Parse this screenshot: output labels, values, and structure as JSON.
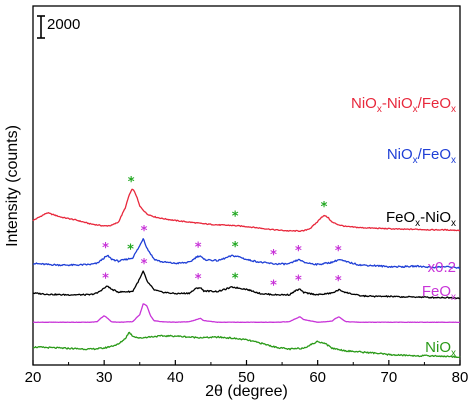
{
  "chart_data": {
    "type": "line",
    "title": "",
    "xlabel": "2θ (degree)",
    "ylabel": "Intensity (counts)",
    "xlim": [
      20,
      80
    ],
    "xticks": [
      20,
      30,
      40,
      50,
      60,
      70,
      80
    ],
    "yticks_shown": false,
    "grid": false,
    "legend": "labels beside each curve (right side)",
    "scale_bar": {
      "label": "2000",
      "value": 2000
    },
    "colors": {
      "NiOx-NiOx/FeOx": "#e8283c",
      "NiOx/FeOx": "#1f3fd6",
      "FeOx-NiOx": "#000000",
      "FeOx": "#c834d8",
      "NiOx": "#2a9a18",
      "star_green": "#22a822",
      "star_magenta": "#c834d8"
    },
    "series": [
      {
        "name": "NiOx-NiOx/FeOx",
        "label_parts": [
          "NiO",
          "x",
          "-NiO",
          "x",
          "/FeO",
          "x"
        ],
        "offset": 11500,
        "x": [
          20,
          22,
          24,
          26,
          28,
          30,
          31,
          32,
          33,
          33.5,
          34,
          34.5,
          35,
          36,
          37,
          38,
          40,
          42,
          44,
          46,
          48,
          50,
          52,
          54,
          56,
          58,
          59,
          60,
          60.5,
          61,
          61.5,
          62,
          63,
          64,
          66,
          68,
          70,
          72,
          74,
          76,
          78,
          80
        ],
        "y": [
          0,
          700,
          300,
          50,
          -300,
          -500,
          -450,
          -150,
          1200,
          2300,
          2900,
          2300,
          1300,
          600,
          350,
          200,
          0,
          -150,
          -300,
          -400,
          -450,
          -550,
          -700,
          -850,
          -950,
          -950,
          -700,
          -100,
          300,
          450,
          250,
          -150,
          -400,
          -550,
          -650,
          -700,
          -750,
          -800,
          -800,
          -850,
          -850,
          -900
        ],
        "peaks": [
          {
            "x": 33.8,
            "mark": "*",
            "color": "green"
          },
          {
            "x": 48.4,
            "mark": "*",
            "color": "green"
          },
          {
            "x": 60.9,
            "mark": "*",
            "color": "green"
          }
        ]
      },
      {
        "name": "NiOx/FeOx",
        "label_parts": [
          "NiO",
          "x",
          "/FeO",
          "x"
        ],
        "offset": 7600,
        "x": [
          20,
          22,
          24,
          26,
          28,
          29,
          30,
          30.5,
          31,
          32,
          33,
          34,
          35,
          35.5,
          36,
          37,
          38,
          40,
          42,
          43,
          43.5,
          44,
          46,
          48,
          49,
          50,
          52,
          54,
          56,
          57,
          57.5,
          58,
          60,
          62,
          63,
          64,
          66,
          68,
          70,
          72,
          74,
          76,
          78,
          80
        ],
        "y": [
          0,
          -100,
          -150,
          -150,
          -100,
          0,
          500,
          700,
          400,
          200,
          350,
          500,
          1600,
          2300,
          1400,
          400,
          150,
          0,
          100,
          600,
          700,
          350,
          250,
          700,
          600,
          350,
          100,
          -50,
          -50,
          250,
          350,
          100,
          -100,
          100,
          350,
          150,
          -150,
          -200,
          -300,
          -300,
          -250,
          -350,
          -300,
          -400
        ],
        "peaks": [
          {
            "x": 30.2,
            "mark": "*",
            "color": "magenta"
          },
          {
            "x": 33.7,
            "mark": "*",
            "color": "green"
          },
          {
            "x": 35.6,
            "mark": "*",
            "color": "magenta"
          },
          {
            "x": 43.2,
            "mark": "*",
            "color": "magenta"
          },
          {
            "x": 48.4,
            "mark": "*",
            "color": "green"
          },
          {
            "x": 53.8,
            "mark": "*",
            "color": "magenta"
          },
          {
            "x": 57.3,
            "mark": "*",
            "color": "magenta"
          },
          {
            "x": 62.9,
            "mark": "*",
            "color": "magenta"
          }
        ]
      },
      {
        "name": "FeOx-NiOx",
        "label_parts": [
          "FeO",
          "x",
          "-NiO",
          "x"
        ],
        "offset": 4900,
        "x": [
          20,
          22,
          24,
          26,
          28,
          29,
          30,
          30.5,
          31,
          32,
          34,
          35,
          35.5,
          36,
          37,
          38,
          40,
          42,
          43,
          43.5,
          44,
          46,
          48,
          50,
          52,
          54,
          56,
          57,
          57.5,
          58,
          60,
          62,
          63,
          64,
          66,
          68,
          70,
          72,
          74,
          76,
          78,
          80
        ],
        "y": [
          0,
          -100,
          -150,
          -150,
          -150,
          0,
          450,
          650,
          350,
          100,
          150,
          1300,
          2000,
          1100,
          300,
          100,
          -50,
          0,
          450,
          500,
          200,
          150,
          550,
          350,
          -50,
          -150,
          -150,
          250,
          350,
          50,
          -150,
          0,
          300,
          50,
          -250,
          -300,
          -300,
          -350,
          -350,
          -400,
          -400,
          -450
        ],
        "peaks": [
          {
            "x": 30.2,
            "mark": "*",
            "color": "magenta"
          },
          {
            "x": 35.6,
            "mark": "*",
            "color": "magenta"
          },
          {
            "x": 43.2,
            "mark": "*",
            "color": "magenta"
          },
          {
            "x": 48.4,
            "mark": "*",
            "color": "green"
          },
          {
            "x": 53.8,
            "mark": "*",
            "color": "magenta"
          },
          {
            "x": 57.3,
            "mark": "*",
            "color": "magenta"
          },
          {
            "x": 62.9,
            "mark": "*",
            "color": "magenta"
          }
        ]
      },
      {
        "name": "FeOx",
        "label_parts": [
          "FeO",
          "x"
        ],
        "scale_note": "x0.2",
        "offset": 2250,
        "x": [
          20,
          24,
          28,
          29,
          29.5,
          30,
          30.5,
          31,
          32,
          34,
          35,
          35.5,
          36,
          36.5,
          37,
          38,
          40,
          42,
          43,
          43.5,
          44,
          46,
          50,
          54,
          56,
          57,
          57.5,
          58,
          60,
          62,
          62.5,
          63,
          63.5,
          64,
          66,
          70,
          74,
          78,
          80
        ],
        "y": [
          0,
          0,
          0,
          50,
          350,
          600,
          350,
          50,
          0,
          50,
          700,
          1700,
          1500,
          600,
          150,
          50,
          0,
          50,
          250,
          350,
          150,
          0,
          0,
          0,
          50,
          350,
          500,
          250,
          0,
          100,
          350,
          500,
          250,
          50,
          0,
          0,
          0,
          0,
          0
        ]
      },
      {
        "name": "NiOx",
        "label_parts": [
          "NiO",
          "x"
        ],
        "offset": 0,
        "x": [
          20,
          22,
          24,
          26,
          28,
          30,
          32,
          33,
          33.5,
          34,
          34.5,
          35,
          36,
          38,
          40,
          42,
          44,
          46,
          48,
          50,
          52,
          54,
          56,
          58,
          59,
          60,
          61,
          62,
          64,
          66,
          68,
          70,
          72,
          74,
          76,
          78,
          80
        ],
        "y": [
          0,
          -50,
          -100,
          -150,
          -200,
          -100,
          250,
          800,
          1350,
          1000,
          900,
          800,
          900,
          1000,
          1000,
          900,
          850,
          900,
          800,
          650,
          350,
          0,
          -200,
          -100,
          200,
          500,
          350,
          -100,
          -350,
          -450,
          -550,
          -700,
          -750,
          -800,
          -800,
          -850,
          -900
        ]
      }
    ]
  }
}
